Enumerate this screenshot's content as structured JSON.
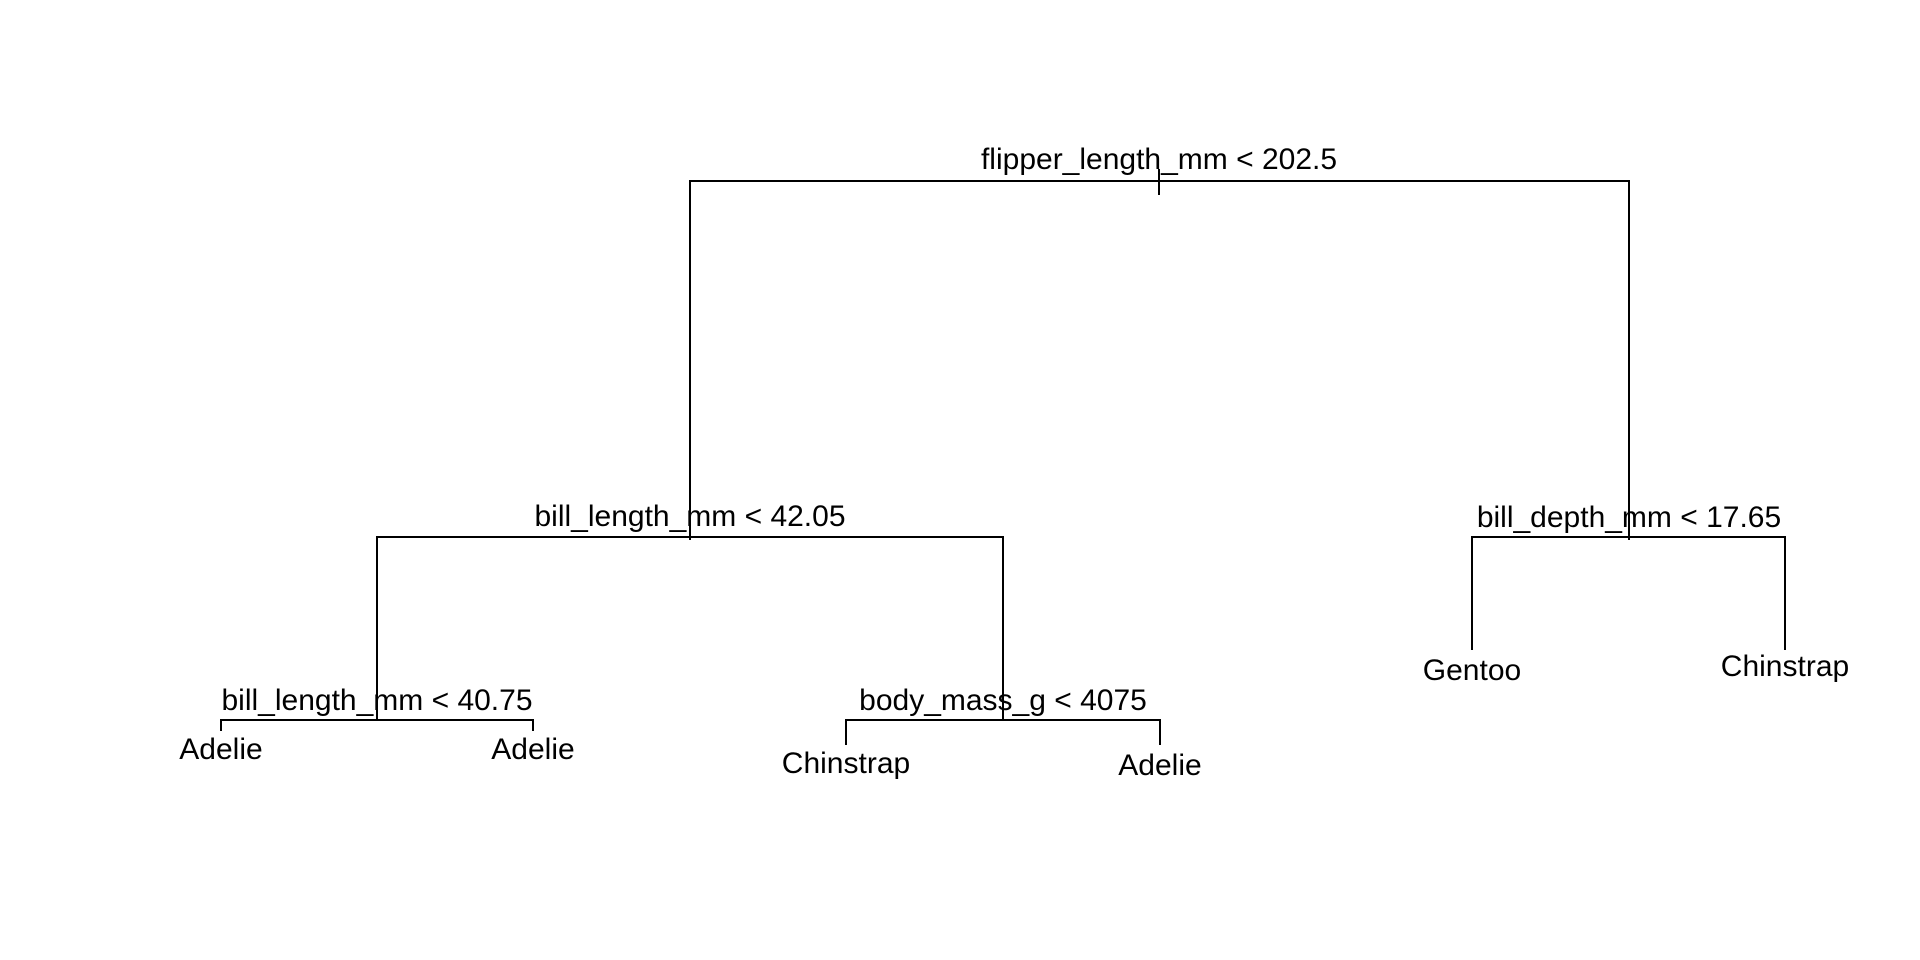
{
  "tree": {
    "root": {
      "split": "flipper_length_mm < 202.5",
      "left": {
        "split": "bill_length_mm < 42.05",
        "left": {
          "split": "bill_length_mm < 40.75",
          "left_leaf": "Adelie",
          "right_leaf": "Adelie"
        },
        "right": {
          "split": "body_mass_g < 4075",
          "left_leaf": "Chinstrap",
          "right_leaf": "Adelie"
        }
      },
      "right": {
        "split": "bill_depth_mm < 17.65",
        "left_leaf": "Gentoo",
        "right_leaf": "Chinstrap"
      }
    }
  }
}
